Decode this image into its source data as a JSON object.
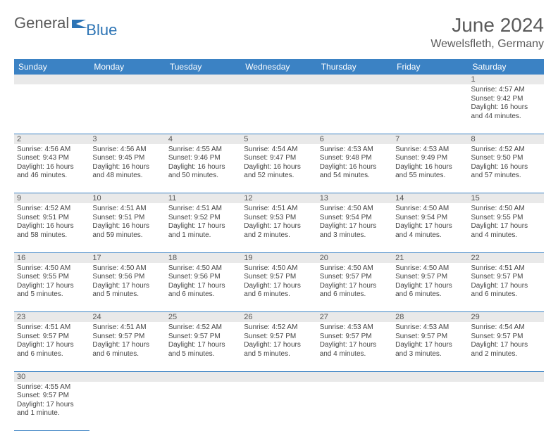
{
  "brand": {
    "part1": "General",
    "part2": "Blue",
    "flag_color": "#2d74b5"
  },
  "title": {
    "month_year": "June 2024",
    "location": "Wewelsfleth, Germany"
  },
  "colors": {
    "header_bg": "#3b82c4",
    "header_fg": "#ffffff",
    "daynum_bg": "#e9e9e9",
    "rule": "#3b82c4"
  },
  "day_names": [
    "Sunday",
    "Monday",
    "Tuesday",
    "Wednesday",
    "Thursday",
    "Friday",
    "Saturday"
  ],
  "weeks": [
    [
      null,
      null,
      null,
      null,
      null,
      null,
      {
        "n": "1",
        "sr": "Sunrise: 4:57 AM",
        "ss": "Sunset: 9:42 PM",
        "dl": "Daylight: 16 hours and 44 minutes."
      }
    ],
    [
      {
        "n": "2",
        "sr": "Sunrise: 4:56 AM",
        "ss": "Sunset: 9:43 PM",
        "dl": "Daylight: 16 hours and 46 minutes."
      },
      {
        "n": "3",
        "sr": "Sunrise: 4:56 AM",
        "ss": "Sunset: 9:45 PM",
        "dl": "Daylight: 16 hours and 48 minutes."
      },
      {
        "n": "4",
        "sr": "Sunrise: 4:55 AM",
        "ss": "Sunset: 9:46 PM",
        "dl": "Daylight: 16 hours and 50 minutes."
      },
      {
        "n": "5",
        "sr": "Sunrise: 4:54 AM",
        "ss": "Sunset: 9:47 PM",
        "dl": "Daylight: 16 hours and 52 minutes."
      },
      {
        "n": "6",
        "sr": "Sunrise: 4:53 AM",
        "ss": "Sunset: 9:48 PM",
        "dl": "Daylight: 16 hours and 54 minutes."
      },
      {
        "n": "7",
        "sr": "Sunrise: 4:53 AM",
        "ss": "Sunset: 9:49 PM",
        "dl": "Daylight: 16 hours and 55 minutes."
      },
      {
        "n": "8",
        "sr": "Sunrise: 4:52 AM",
        "ss": "Sunset: 9:50 PM",
        "dl": "Daylight: 16 hours and 57 minutes."
      }
    ],
    [
      {
        "n": "9",
        "sr": "Sunrise: 4:52 AM",
        "ss": "Sunset: 9:51 PM",
        "dl": "Daylight: 16 hours and 58 minutes."
      },
      {
        "n": "10",
        "sr": "Sunrise: 4:51 AM",
        "ss": "Sunset: 9:51 PM",
        "dl": "Daylight: 16 hours and 59 minutes."
      },
      {
        "n": "11",
        "sr": "Sunrise: 4:51 AM",
        "ss": "Sunset: 9:52 PM",
        "dl": "Daylight: 17 hours and 1 minute."
      },
      {
        "n": "12",
        "sr": "Sunrise: 4:51 AM",
        "ss": "Sunset: 9:53 PM",
        "dl": "Daylight: 17 hours and 2 minutes."
      },
      {
        "n": "13",
        "sr": "Sunrise: 4:50 AM",
        "ss": "Sunset: 9:54 PM",
        "dl": "Daylight: 17 hours and 3 minutes."
      },
      {
        "n": "14",
        "sr": "Sunrise: 4:50 AM",
        "ss": "Sunset: 9:54 PM",
        "dl": "Daylight: 17 hours and 4 minutes."
      },
      {
        "n": "15",
        "sr": "Sunrise: 4:50 AM",
        "ss": "Sunset: 9:55 PM",
        "dl": "Daylight: 17 hours and 4 minutes."
      }
    ],
    [
      {
        "n": "16",
        "sr": "Sunrise: 4:50 AM",
        "ss": "Sunset: 9:55 PM",
        "dl": "Daylight: 17 hours and 5 minutes."
      },
      {
        "n": "17",
        "sr": "Sunrise: 4:50 AM",
        "ss": "Sunset: 9:56 PM",
        "dl": "Daylight: 17 hours and 5 minutes."
      },
      {
        "n": "18",
        "sr": "Sunrise: 4:50 AM",
        "ss": "Sunset: 9:56 PM",
        "dl": "Daylight: 17 hours and 6 minutes."
      },
      {
        "n": "19",
        "sr": "Sunrise: 4:50 AM",
        "ss": "Sunset: 9:57 PM",
        "dl": "Daylight: 17 hours and 6 minutes."
      },
      {
        "n": "20",
        "sr": "Sunrise: 4:50 AM",
        "ss": "Sunset: 9:57 PM",
        "dl": "Daylight: 17 hours and 6 minutes."
      },
      {
        "n": "21",
        "sr": "Sunrise: 4:50 AM",
        "ss": "Sunset: 9:57 PM",
        "dl": "Daylight: 17 hours and 6 minutes."
      },
      {
        "n": "22",
        "sr": "Sunrise: 4:51 AM",
        "ss": "Sunset: 9:57 PM",
        "dl": "Daylight: 17 hours and 6 minutes."
      }
    ],
    [
      {
        "n": "23",
        "sr": "Sunrise: 4:51 AM",
        "ss": "Sunset: 9:57 PM",
        "dl": "Daylight: 17 hours and 6 minutes."
      },
      {
        "n": "24",
        "sr": "Sunrise: 4:51 AM",
        "ss": "Sunset: 9:57 PM",
        "dl": "Daylight: 17 hours and 6 minutes."
      },
      {
        "n": "25",
        "sr": "Sunrise: 4:52 AM",
        "ss": "Sunset: 9:57 PM",
        "dl": "Daylight: 17 hours and 5 minutes."
      },
      {
        "n": "26",
        "sr": "Sunrise: 4:52 AM",
        "ss": "Sunset: 9:57 PM",
        "dl": "Daylight: 17 hours and 5 minutes."
      },
      {
        "n": "27",
        "sr": "Sunrise: 4:53 AM",
        "ss": "Sunset: 9:57 PM",
        "dl": "Daylight: 17 hours and 4 minutes."
      },
      {
        "n": "28",
        "sr": "Sunrise: 4:53 AM",
        "ss": "Sunset: 9:57 PM",
        "dl": "Daylight: 17 hours and 3 minutes."
      },
      {
        "n": "29",
        "sr": "Sunrise: 4:54 AM",
        "ss": "Sunset: 9:57 PM",
        "dl": "Daylight: 17 hours and 2 minutes."
      }
    ],
    [
      {
        "n": "30",
        "sr": "Sunrise: 4:55 AM",
        "ss": "Sunset: 9:57 PM",
        "dl": "Daylight: 17 hours and 1 minute."
      },
      null,
      null,
      null,
      null,
      null,
      null
    ]
  ]
}
